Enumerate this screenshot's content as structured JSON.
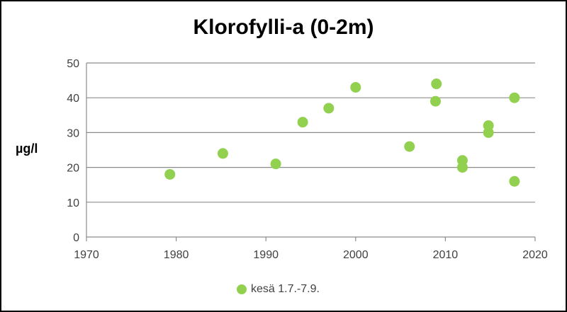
{
  "chart_data": {
    "type": "scatter",
    "title": "Klorofylli-a (0-2m)",
    "xlabel": "",
    "ylabel": "µg/l",
    "xlim": [
      1970,
      2020
    ],
    "ylim": [
      0,
      50
    ],
    "xticks": [
      1970,
      1980,
      1990,
      2000,
      2010,
      2020
    ],
    "yticks": [
      0,
      10,
      20,
      30,
      40,
      50
    ],
    "grid": true,
    "legend_position": "bottom",
    "series": [
      {
        "name": "kesä 1.7.-7.9.",
        "color": "#92d050",
        "x": [
          1979.3,
          1985.2,
          1991.1,
          1994.1,
          1997.0,
          2000.0,
          2006.0,
          2008.9,
          2009.0,
          2011.9,
          2011.9,
          2014.8,
          2014.8,
          2017.7,
          2017.7
        ],
        "y": [
          18,
          24,
          21,
          33,
          37,
          43,
          26,
          39,
          44,
          20,
          22,
          30,
          32,
          16,
          40
        ]
      }
    ]
  }
}
